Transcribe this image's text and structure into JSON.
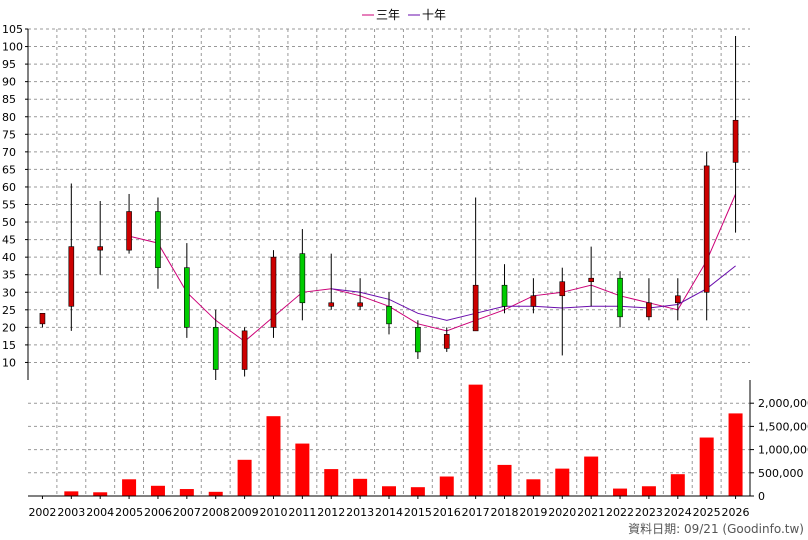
{
  "chart_data": {
    "type": "candlestick",
    "years": [
      "2002",
      "2003",
      "2004",
      "2005",
      "2006",
      "2007",
      "2008",
      "2009",
      "2010",
      "2011",
      "2012",
      "2013",
      "2014",
      "2015",
      "2016",
      "2017",
      "2018",
      "2019",
      "2020",
      "2021",
      "2022",
      "2023",
      "2024",
      "2025",
      "2026"
    ],
    "ohlc": [
      {
        "open": 21,
        "high": 24,
        "low": 20,
        "close": 24
      },
      {
        "open": 26,
        "high": 61,
        "low": 19,
        "close": 43
      },
      {
        "open": 42,
        "high": 56,
        "low": 35,
        "close": 43
      },
      {
        "open": 42,
        "high": 58,
        "low": 41,
        "close": 53
      },
      {
        "open": 53,
        "high": 57,
        "low": 31,
        "close": 37
      },
      {
        "open": 37,
        "high": 44,
        "low": 17,
        "close": 20
      },
      {
        "open": 20,
        "high": 25,
        "low": 5,
        "close": 8
      },
      {
        "open": 8,
        "high": 20,
        "low": 6,
        "close": 19
      },
      {
        "open": 20,
        "high": 42,
        "low": 17,
        "close": 40
      },
      {
        "open": 41,
        "high": 48,
        "low": 22,
        "close": 27
      },
      {
        "open": 26,
        "high": 41,
        "low": 25,
        "close": 27
      },
      {
        "open": 26,
        "high": 34,
        "low": 25,
        "close": 27
      },
      {
        "open": 26,
        "high": 30,
        "low": 18,
        "close": 21
      },
      {
        "open": 20,
        "high": 22,
        "low": 11,
        "close": 13
      },
      {
        "open": 14,
        "high": 20,
        "low": 13,
        "close": 18
      },
      {
        "open": 19,
        "high": 57,
        "low": 19,
        "close": 32
      },
      {
        "open": 32,
        "high": 38,
        "low": 24,
        "close": 26
      },
      {
        "open": 26,
        "high": 34,
        "low": 24,
        "close": 29
      },
      {
        "open": 29,
        "high": 37,
        "low": 12,
        "close": 33
      },
      {
        "open": 33,
        "high": 43,
        "low": 26,
        "close": 34
      },
      {
        "open": 34,
        "high": 36,
        "low": 20,
        "close": 23
      },
      {
        "open": 23,
        "high": 34,
        "low": 22,
        "close": 27
      },
      {
        "open": 27,
        "high": 34,
        "low": 22,
        "close": 29
      },
      {
        "open": 30,
        "high": 70,
        "low": 22,
        "close": 66
      },
      {
        "open": 67,
        "high": 103,
        "low": 47,
        "close": 79
      }
    ],
    "series": [
      {
        "name": "三年",
        "color": "#cc0077",
        "values": [
          null,
          null,
          null,
          46,
          44,
          30,
          22,
          16,
          23,
          30,
          31,
          29,
          26,
          21,
          19,
          22,
          25,
          29,
          30,
          32,
          29,
          27,
          25,
          39,
          58
        ]
      },
      {
        "name": "十年",
        "color": "#6a0dad",
        "values": [
          null,
          null,
          null,
          null,
          null,
          null,
          null,
          null,
          null,
          null,
          31,
          30,
          28,
          24,
          22,
          24,
          26,
          26,
          25.5,
          26,
          26,
          25.5,
          26.5,
          31,
          37.5
        ]
      }
    ],
    "volume": [
      0,
      100000,
      80000,
      360000,
      220000,
      150000,
      90000,
      780000,
      1720000,
      1130000,
      580000,
      370000,
      210000,
      190000,
      420000,
      2400000,
      670000,
      360000,
      590000,
      850000,
      160000,
      210000,
      470000,
      1260000,
      1780000
    ],
    "ylim_price": [
      5,
      105
    ],
    "ylim_volume": [
      0,
      2500000
    ],
    "price_ticks": [
      10,
      15,
      20,
      25,
      30,
      35,
      40,
      45,
      50,
      55,
      60,
      65,
      70,
      75,
      80,
      85,
      90,
      95,
      100,
      105
    ],
    "volume_ticks": [
      {
        "v": 0,
        "label": "0"
      },
      {
        "v": 500000,
        "label": "500,000"
      },
      {
        "v": 1000000,
        "label": "1,000,000"
      },
      {
        "v": 1500000,
        "label": "1,500,000"
      },
      {
        "v": 2000000,
        "label": "2,000,000"
      }
    ],
    "colors": {
      "up": "#cc0000",
      "down": "#00cc00",
      "volume": "#ff0000",
      "grid": "#999999"
    }
  },
  "legend": [
    {
      "label": "三年"
    },
    {
      "label": "十年"
    }
  ],
  "footer": "資料日期: 09/21  (Goodinfo.tw)"
}
